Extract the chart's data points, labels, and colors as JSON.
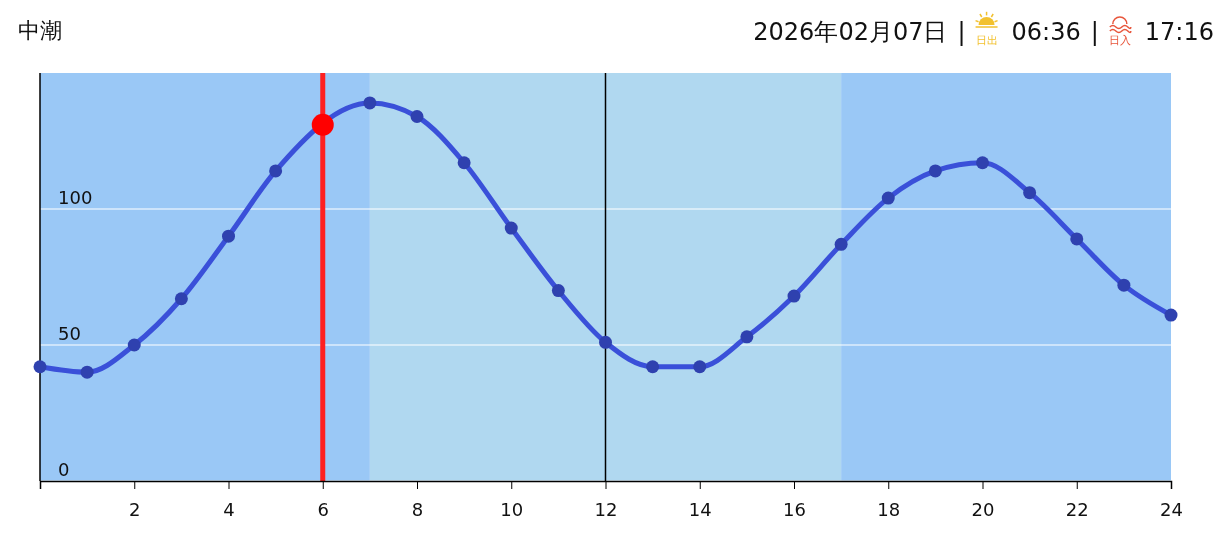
{
  "chart_data": {
    "type": "line",
    "title": "中潮",
    "annotations": [
      "2026年02月07日",
      "|",
      "日出",
      "06:36",
      "|",
      "日入",
      "17:16"
    ],
    "x": [
      0,
      1,
      2,
      3,
      4,
      5,
      6,
      7,
      8,
      9,
      10,
      11,
      12,
      13,
      14,
      15,
      16,
      17,
      18,
      19,
      20,
      21,
      22,
      23,
      24
    ],
    "series": [
      {
        "color": "#3a50d9",
        "values": [
          42,
          40,
          50,
          67,
          90,
          114,
          null,
          139,
          134,
          117,
          93,
          70,
          51,
          42,
          42,
          53,
          68,
          87,
          104,
          114,
          117,
          106,
          89,
          72,
          61
        ]
      },
      {
        "type": "scatter",
        "color": "#ff0000",
        "x": [
          6
        ],
        "values": [
          131
        ]
      }
    ],
    "xlim": [
      0,
      24
    ],
    "xticks": [
      2,
      4,
      6,
      8,
      10,
      12,
      14,
      16,
      18,
      20,
      22,
      24
    ],
    "ylim": [
      0,
      150
    ],
    "yticks": [
      0,
      50,
      100
    ],
    "grid": "y",
    "marker": "circle",
    "line_style": "solid",
    "bands": [
      {
        "axis": "x",
        "from": 0,
        "to": 7,
        "color": "#9ac8f6"
      },
      {
        "axis": "x",
        "from": 7,
        "to": 17,
        "color": "#b0d8f0"
      },
      {
        "axis": "x",
        "from": 17,
        "to": 24,
        "color": "#9ac8f6"
      }
    ],
    "ref_lines": [
      {
        "axis": "x",
        "value": 6,
        "color": "#ff2020"
      },
      {
        "axis": "x",
        "value": 12,
        "color": "#000000"
      }
    ]
  }
}
